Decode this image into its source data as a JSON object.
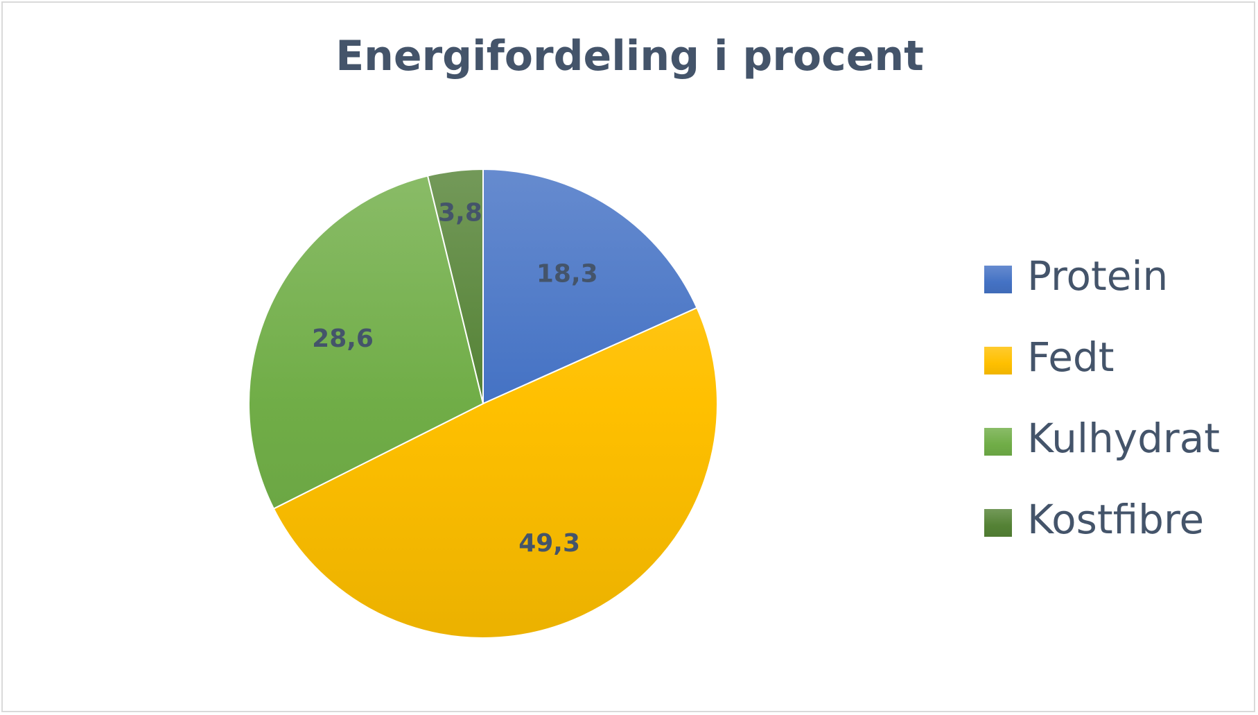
{
  "chart_data": {
    "type": "pie",
    "title": "Energifordeling i procent",
    "categories": [
      "Protein",
      "Fedt",
      "Kulhydrat",
      "Kostfibre"
    ],
    "values": [
      18.3,
      49.3,
      28.6,
      3.8
    ],
    "value_labels": [
      "18,3",
      "49,3",
      "28,6",
      "3,8"
    ],
    "colors": [
      "#4472c4",
      "#ffc000",
      "#70ad47",
      "#548235"
    ],
    "legend_position": "right"
  }
}
